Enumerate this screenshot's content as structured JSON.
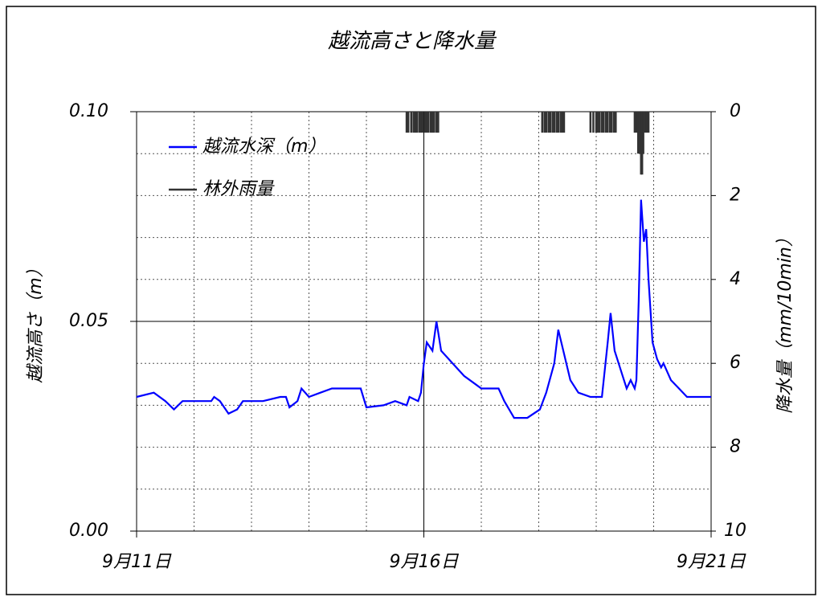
{
  "chart_data": {
    "type": "line",
    "title": "越流高さと降水量",
    "ylabel": "越流高さ（m）",
    "y2label": "降水量（mm/10min）",
    "xlim": [
      0,
      10
    ],
    "xticks": [
      {
        "value": 0,
        "label": "9月11日"
      },
      {
        "value": 5,
        "label": "9月16日"
      },
      {
        "value": 10,
        "label": "9月21日"
      }
    ],
    "xminorticks": [
      1,
      2,
      3,
      4,
      6,
      7,
      8,
      9
    ],
    "ylim": [
      0,
      0.1
    ],
    "yticks": [
      {
        "value": 0,
        "label": "0.00"
      },
      0.05,
      {
        "value": 0.1,
        "label": "0.10"
      }
    ],
    "yminorticks": [
      0.01,
      0.02,
      0.03,
      0.04,
      0.06,
      0.07,
      0.08,
      0.09
    ],
    "y2lim": [
      10,
      0
    ],
    "y2ticks": [
      0,
      2,
      4,
      6,
      8,
      10
    ],
    "grid": true,
    "legend": "upper left",
    "series": [
      {
        "name": "越流水深（m）",
        "color": "#0000ff",
        "x": [
          0,
          0.3,
          0.5,
          0.65,
          0.8,
          1.0,
          1.3,
          1.35,
          1.45,
          1.6,
          1.75,
          1.85,
          2.0,
          2.2,
          2.5,
          2.6,
          2.66,
          2.8,
          2.87,
          3.0,
          3.2,
          3.4,
          3.8,
          3.9,
          4.0,
          4.3,
          4.5,
          4.7,
          4.75,
          4.9,
          4.95,
          5.0,
          5.05,
          5.15,
          5.22,
          5.3,
          5.5,
          5.7,
          5.9,
          6.0,
          6.3,
          6.4,
          6.57,
          6.8,
          7.02,
          7.13,
          7.27,
          7.34,
          7.41,
          7.55,
          7.69,
          7.9,
          8.1,
          8.2,
          8.25,
          8.32,
          8.39,
          8.46,
          8.53,
          8.6,
          8.67,
          8.7,
          8.74,
          8.78,
          8.83,
          8.87,
          8.91,
          8.98,
          9.06,
          9.13,
          9.17,
          9.3,
          9.44,
          9.58,
          9.79,
          10.0
        ],
        "values": [
          0.032,
          0.033,
          0.031,
          0.029,
          0.031,
          0.031,
          0.031,
          0.032,
          0.031,
          0.028,
          0.029,
          0.031,
          0.031,
          0.031,
          0.032,
          0.032,
          0.0295,
          0.031,
          0.034,
          0.032,
          0.033,
          0.034,
          0.034,
          0.034,
          0.0295,
          0.03,
          0.031,
          0.03,
          0.032,
          0.031,
          0.033,
          0.04,
          0.045,
          0.043,
          0.05,
          0.043,
          0.04,
          0.037,
          0.035,
          0.034,
          0.034,
          0.031,
          0.027,
          0.027,
          0.029,
          0.033,
          0.04,
          0.048,
          0.044,
          0.036,
          0.033,
          0.032,
          0.032,
          0.045,
          0.052,
          0.043,
          0.04,
          0.037,
          0.034,
          0.036,
          0.034,
          0.036,
          0.055,
          0.079,
          0.069,
          0.072,
          0.06,
          0.045,
          0.041,
          0.039,
          0.04,
          0.036,
          0.034,
          0.032,
          0.032,
          0.032
        ]
      },
      {
        "name": "林外雨量",
        "color": "#333333",
        "type": "bar",
        "axis": "y2",
        "x": [
          4.7,
          4.73,
          4.78,
          4.82,
          4.85,
          4.88,
          4.92,
          4.95,
          4.98,
          5.02,
          5.05,
          5.08,
          5.12,
          5.15,
          5.18,
          5.22,
          5.25,
          7.06,
          7.1,
          7.13,
          7.17,
          7.2,
          7.24,
          7.27,
          7.31,
          7.34,
          7.38,
          7.41,
          7.44,
          7.9,
          7.95,
          8.0,
          8.03,
          8.06,
          8.1,
          8.13,
          8.17,
          8.2,
          8.24,
          8.27,
          8.31,
          8.34,
          8.67,
          8.7,
          8.73,
          8.76,
          8.78,
          8.8,
          8.82,
          8.85,
          8.88,
          8.91
        ],
        "values": [
          0.5,
          0.5,
          0.5,
          0.5,
          0.5,
          0.5,
          0.5,
          0.5,
          0.5,
          0.5,
          0.5,
          0.5,
          0.5,
          0.5,
          0.5,
          0.5,
          0.5,
          0.5,
          0.5,
          0.5,
          0.5,
          0.5,
          0.5,
          0.5,
          0.5,
          0.5,
          0.5,
          0.5,
          0.5,
          0.5,
          0.5,
          0.5,
          0.5,
          0.5,
          0.5,
          0.5,
          0.5,
          0.5,
          0.5,
          0.5,
          0.5,
          0.5,
          0.5,
          0.5,
          1,
          1,
          1.5,
          1.5,
          1,
          0.5,
          0.5,
          0.5
        ]
      }
    ]
  }
}
